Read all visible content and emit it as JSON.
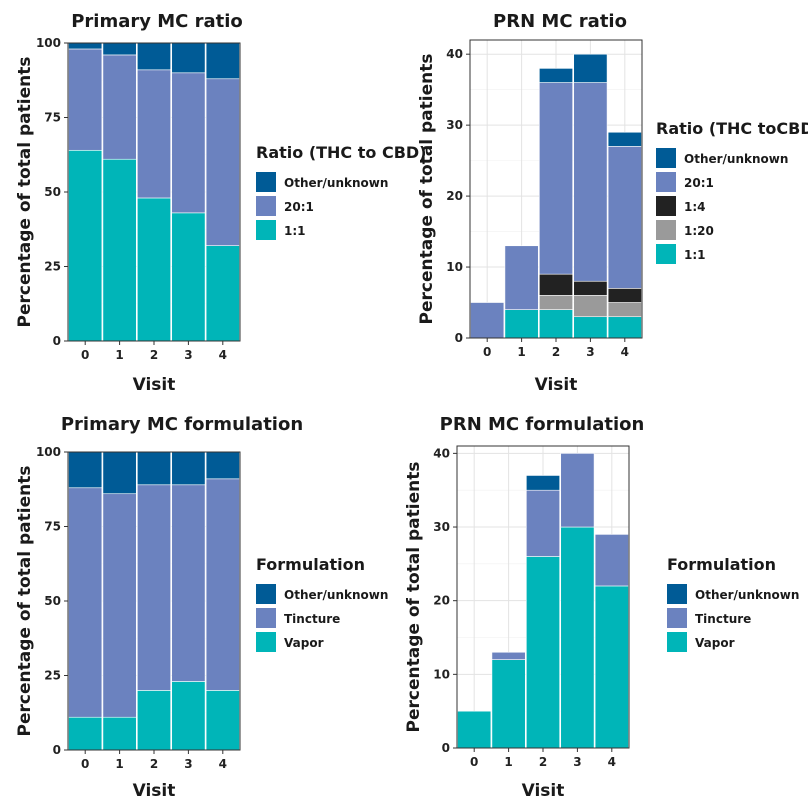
{
  "colors": {
    "Other/unknown": "#005b96",
    "20:1": "#6b82bf",
    "Tincture": "#6b82bf",
    "1:4": "#222222",
    "1:20": "#9a9a9a",
    "1:1": "#00b5b8",
    "Vapor": "#00b5b8"
  },
  "chart_data": [
    {
      "type": "bar",
      "stacked": true,
      "title": "Primary MC ratio",
      "xlabel": "Visit",
      "ylabel": "Percentage of total patients",
      "categories": [
        "0",
        "1",
        "2",
        "3",
        "4"
      ],
      "ylim": [
        0,
        100
      ],
      "yticks": [
        0,
        25,
        50,
        75,
        100
      ],
      "grid": true,
      "legend_title": "Ratio (THC to CBD)",
      "legend_position": "right",
      "legend_order": [
        "Other/unknown",
        "20:1",
        "1:1"
      ],
      "series": [
        {
          "name": "1:1",
          "values": [
            64,
            61,
            48,
            43,
            32
          ]
        },
        {
          "name": "20:1",
          "values": [
            34,
            35,
            43,
            47,
            56
          ]
        },
        {
          "name": "Other/unknown",
          "values": [
            2,
            4,
            9,
            10,
            12
          ]
        }
      ]
    },
    {
      "type": "bar",
      "stacked": true,
      "title": "PRN MC ratio",
      "xlabel": "Visit",
      "ylabel": "Percentage of total patients",
      "categories": [
        "0",
        "1",
        "2",
        "3",
        "4"
      ],
      "ylim": [
        0,
        42
      ],
      "yticks": [
        0,
        10,
        20,
        30,
        40
      ],
      "grid": true,
      "legend_title": "Ratio (THC toCBD)",
      "legend_position": "right",
      "legend_order": [
        "Other/unknown",
        "20:1",
        "1:4",
        "1:20",
        "1:1"
      ],
      "series": [
        {
          "name": "1:1",
          "values": [
            0,
            4,
            4,
            3,
            3
          ]
        },
        {
          "name": "1:20",
          "values": [
            0,
            0,
            2,
            3,
            2
          ]
        },
        {
          "name": "1:4",
          "values": [
            0,
            0,
            3,
            2,
            2
          ]
        },
        {
          "name": "20:1",
          "values": [
            5,
            9,
            27,
            28,
            20
          ]
        },
        {
          "name": "Other/unknown",
          "values": [
            0,
            0,
            2,
            4,
            2
          ]
        }
      ]
    },
    {
      "type": "bar",
      "stacked": true,
      "title": "Primary MC formulation",
      "xlabel": "Visit",
      "ylabel": "Percentage of total patients",
      "categories": [
        "0",
        "1",
        "2",
        "3",
        "4"
      ],
      "ylim": [
        0,
        100
      ],
      "yticks": [
        0,
        25,
        50,
        75,
        100
      ],
      "grid": true,
      "legend_title": "Formulation",
      "legend_position": "right",
      "legend_order": [
        "Other/unknown",
        "Tincture",
        "Vapor"
      ],
      "series": [
        {
          "name": "Vapor",
          "values": [
            11,
            11,
            20,
            23,
            20
          ]
        },
        {
          "name": "Tincture",
          "values": [
            77,
            75,
            69,
            66,
            71
          ]
        },
        {
          "name": "Other/unknown",
          "values": [
            12,
            14,
            11,
            11,
            9
          ]
        }
      ]
    },
    {
      "type": "bar",
      "stacked": true,
      "title": "PRN MC formulation",
      "xlabel": "Visit",
      "ylabel": "Percentage of total patients",
      "categories": [
        "0",
        "1",
        "2",
        "3",
        "4"
      ],
      "ylim": [
        0,
        41
      ],
      "yticks": [
        0,
        10,
        20,
        30,
        40
      ],
      "grid": true,
      "legend_title": "Formulation",
      "legend_position": "right",
      "legend_order": [
        "Other/unknown",
        "Tincture",
        "Vapor"
      ],
      "series": [
        {
          "name": "Vapor",
          "values": [
            5,
            12,
            26,
            30,
            22
          ]
        },
        {
          "name": "Tincture",
          "values": [
            0,
            1,
            9,
            10,
            7
          ]
        },
        {
          "name": "Other/unknown",
          "values": [
            0,
            0,
            2,
            0,
            0
          ]
        }
      ]
    }
  ]
}
